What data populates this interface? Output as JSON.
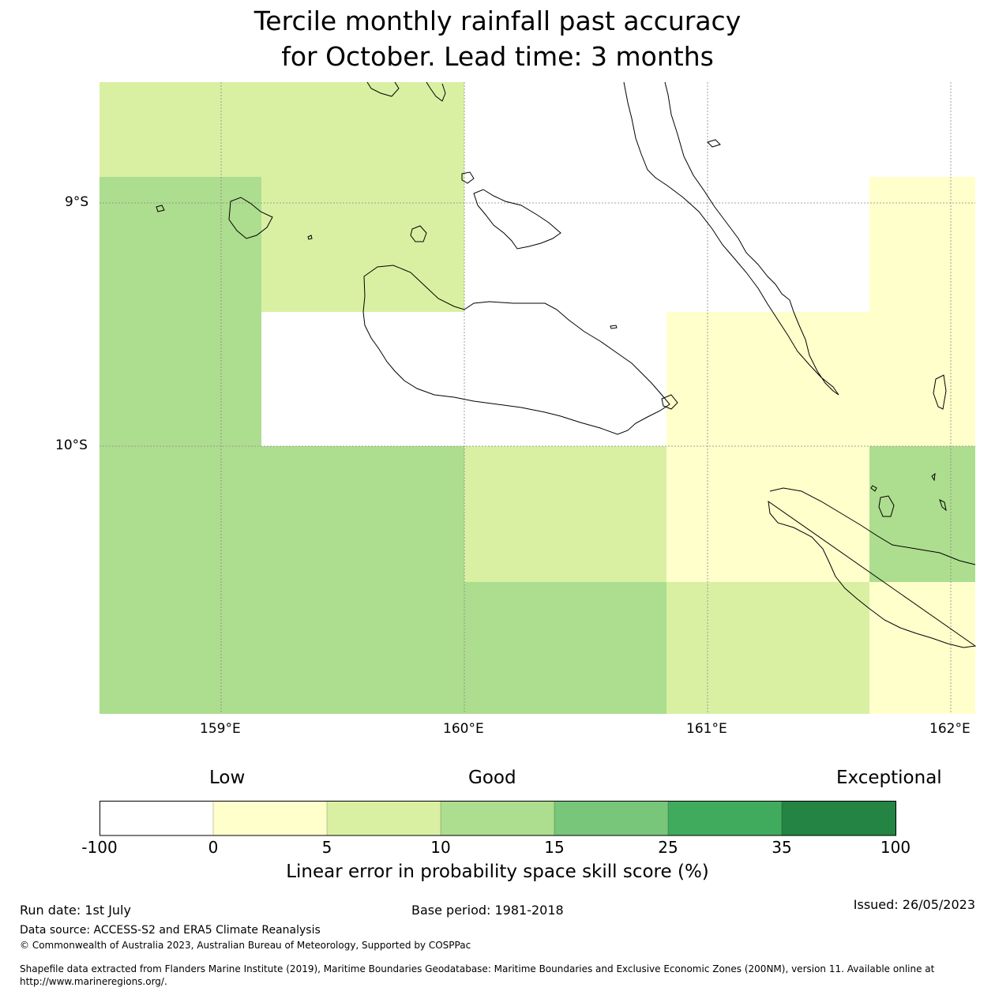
{
  "title": [
    "Tercile monthly rainfall past accuracy",
    "for October. Lead time: 3 months"
  ],
  "map": {
    "lon_labels": [
      "159°E",
      "160°E",
      "161°E",
      "162°E"
    ],
    "lat_labels": [
      "9°S",
      "10°S"
    ],
    "lon_range": [
      158.5,
      162.1
    ],
    "lat_range": [
      -11.1,
      -8.5
    ],
    "grid": true,
    "coastline_color": "#000000"
  },
  "colorbar": {
    "category_labels": [
      "Low",
      "Good",
      "Exceptional"
    ],
    "ticks": [
      "-100",
      "0",
      "5",
      "10",
      "15",
      "25",
      "35",
      "100"
    ],
    "colors": [
      "#ffffff",
      "#ffffcc",
      "#d9f0a3",
      "#addd8e",
      "#78c679",
      "#41ab5d",
      "#238443"
    ],
    "title": "Linear error in probability space skill score (%)"
  },
  "footer": {
    "run_date": "Run date: 1st July",
    "base_period": "Base period: 1981-2018",
    "issued": "Issued: 26/05/2023",
    "data_source": "Data source: ACCESS-S2 and ERA5 Climate Reanalysis",
    "copyright": "© Commonwealth of Australia 2023, Australian Bureau of Meteorology, Supported by COSPPac",
    "shapefile_line1": "Shapefile data extracted from Flanders Marine Institute (2019), Maritime Boundaries Geodatabase: Maritime Boundaries and Exclusive Economic Zones (200NM), version 11. Available online at",
    "shapefile_line2": "http://www.marineregions.org/."
  }
}
